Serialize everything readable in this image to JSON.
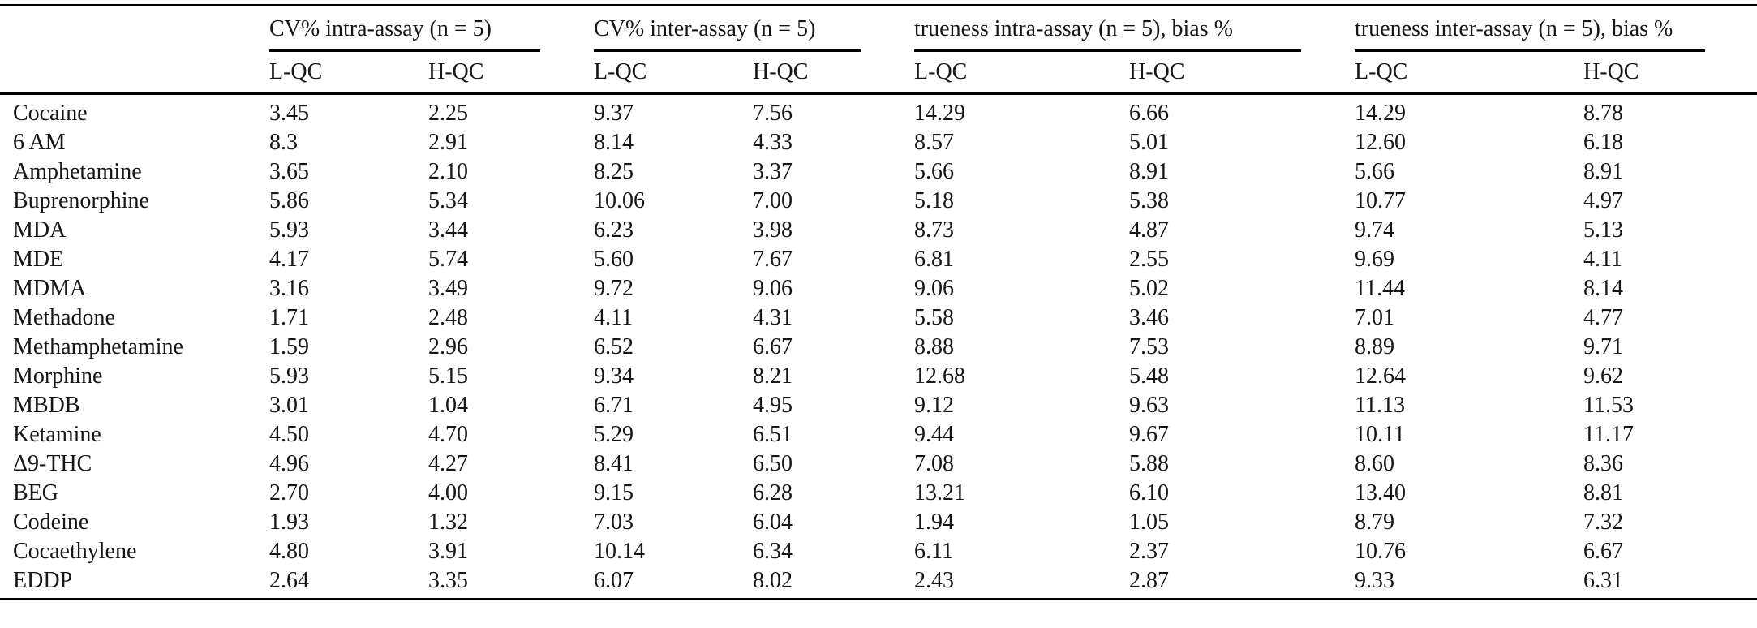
{
  "table": {
    "column_groups": [
      {
        "label": "CV% intra-assay (n = 5)",
        "sub": [
          "L-QC",
          "H-QC"
        ]
      },
      {
        "label": "CV% inter-assay (n = 5)",
        "sub": [
          "L-QC",
          "H-QC"
        ]
      },
      {
        "label": "trueness intra-assay (n = 5), bias %",
        "sub": [
          "L-QC",
          "H-QC"
        ]
      },
      {
        "label": "trueness inter-assay (n = 5), bias %",
        "sub": [
          "L-QC",
          "H-QC"
        ]
      }
    ],
    "rows": [
      {
        "name": "Cocaine",
        "values": [
          "3.45",
          "2.25",
          "9.37",
          "7.56",
          "14.29",
          "6.66",
          "14.29",
          "8.78"
        ]
      },
      {
        "name": "6 AM",
        "values": [
          "8.3",
          "2.91",
          "8.14",
          "4.33",
          "8.57",
          "5.01",
          "12.60",
          "6.18"
        ]
      },
      {
        "name": "Amphetamine",
        "values": [
          "3.65",
          "2.10",
          "8.25",
          "3.37",
          "5.66",
          "8.91",
          "5.66",
          "8.91"
        ]
      },
      {
        "name": "Buprenorphine",
        "values": [
          "5.86",
          "5.34",
          "10.06",
          "7.00",
          "5.18",
          "5.38",
          "10.77",
          "4.97"
        ]
      },
      {
        "name": "MDA",
        "values": [
          "5.93",
          "3.44",
          "6.23",
          "3.98",
          "8.73",
          "4.87",
          "9.74",
          "5.13"
        ]
      },
      {
        "name": "MDE",
        "values": [
          "4.17",
          "5.74",
          "5.60",
          "7.67",
          "6.81",
          "2.55",
          "9.69",
          "4.11"
        ]
      },
      {
        "name": "MDMA",
        "values": [
          "3.16",
          "3.49",
          "9.72",
          "9.06",
          "9.06",
          "5.02",
          "11.44",
          "8.14"
        ]
      },
      {
        "name": "Methadone",
        "values": [
          "1.71",
          "2.48",
          "4.11",
          "4.31",
          "5.58",
          "3.46",
          "7.01",
          "4.77"
        ]
      },
      {
        "name": "Methamphetamine",
        "values": [
          "1.59",
          "2.96",
          "6.52",
          "6.67",
          "8.88",
          "7.53",
          "8.89",
          "9.71"
        ]
      },
      {
        "name": "Morphine",
        "values": [
          "5.93",
          "5.15",
          "9.34",
          "8.21",
          "12.68",
          "5.48",
          "12.64",
          "9.62"
        ]
      },
      {
        "name": "MBDB",
        "values": [
          "3.01",
          "1.04",
          "6.71",
          "4.95",
          "9.12",
          "9.63",
          "11.13",
          "11.53"
        ]
      },
      {
        "name": "Ketamine",
        "values": [
          "4.50",
          "4.70",
          "5.29",
          "6.51",
          "9.44",
          "9.67",
          "10.11",
          "11.17"
        ]
      },
      {
        "name": "Δ9-THC",
        "values": [
          "4.96",
          "4.27",
          "8.41",
          "6.50",
          "7.08",
          "5.88",
          "8.60",
          "8.36"
        ]
      },
      {
        "name": "BEG",
        "values": [
          "2.70",
          "4.00",
          "9.15",
          "6.28",
          "13.21",
          "6.10",
          "13.40",
          "8.81"
        ]
      },
      {
        "name": "Codeine",
        "values": [
          "1.93",
          "1.32",
          "7.03",
          "6.04",
          "1.94",
          "1.05",
          "8.79",
          "7.32"
        ]
      },
      {
        "name": "Cocaethylene",
        "values": [
          "4.80",
          "3.91",
          "10.14",
          "6.34",
          "6.11",
          "2.37",
          "10.76",
          "6.67"
        ]
      },
      {
        "name": "EDDP",
        "values": [
          "2.64",
          "3.35",
          "6.07",
          "8.02",
          "2.43",
          "2.87",
          "9.33",
          "6.31"
        ]
      }
    ]
  }
}
